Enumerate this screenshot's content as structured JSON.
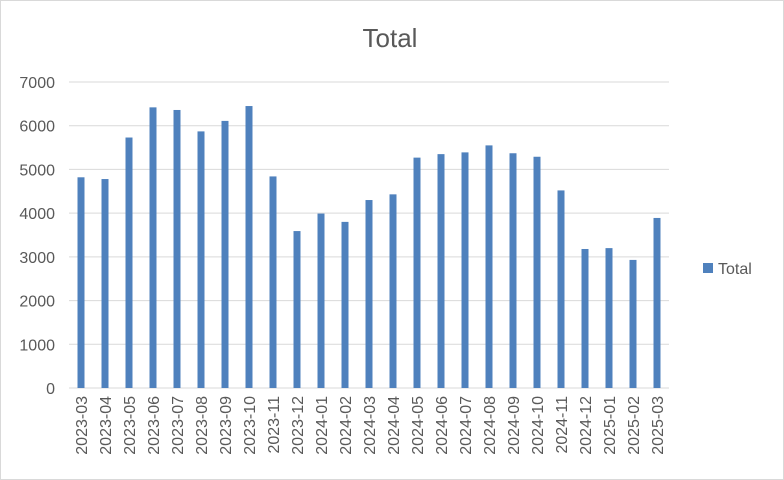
{
  "chart_data": {
    "type": "bar",
    "title": "Total",
    "categories": [
      "2023-03",
      "2023-04",
      "2023-05",
      "2023-06",
      "2023-07",
      "2023-08",
      "2023-09",
      "2023-10",
      "2023-11",
      "2023-12",
      "2024-01",
      "2024-02",
      "2024-03",
      "2024-04",
      "2024-05",
      "2024-06",
      "2024-07",
      "2024-08",
      "2024-09",
      "2024-10",
      "2024-11",
      "2024-12",
      "2025-01",
      "2025-02",
      "2025-03"
    ],
    "series": [
      {
        "name": "Total",
        "color": "#4f81bd",
        "values": [
          4820,
          4780,
          5730,
          6420,
          6360,
          5870,
          6110,
          6450,
          4840,
          3590,
          3990,
          3800,
          4300,
          4430,
          5270,
          5350,
          5390,
          5550,
          5370,
          5290,
          4520,
          3180,
          3200,
          2930,
          3890
        ]
      }
    ],
    "ylim": [
      0,
      7000
    ],
    "yticks": [
      0,
      1000,
      2000,
      3000,
      4000,
      5000,
      6000,
      7000
    ],
    "grid": true,
    "legend": "right",
    "xlabel": "",
    "ylabel": ""
  }
}
